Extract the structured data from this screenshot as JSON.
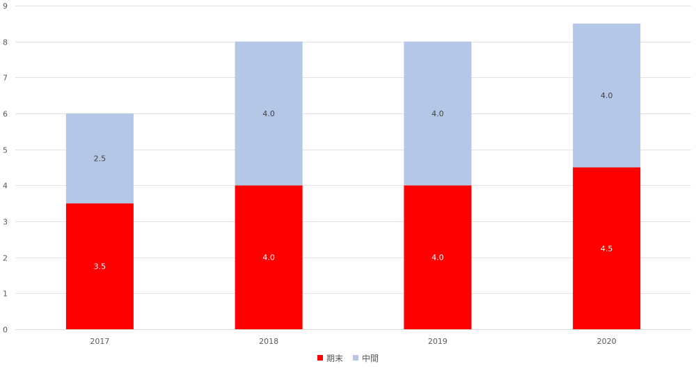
{
  "chart_data": {
    "type": "bar",
    "stacked": true,
    "categories": [
      "2017",
      "2018",
      "2019",
      "2020"
    ],
    "series": [
      {
        "name": "期末",
        "values": [
          3.5,
          4.0,
          4.0,
          4.5
        ],
        "labels": [
          "3.5",
          "4.0",
          "4.0",
          "4.5"
        ],
        "color": "#ff0000",
        "label_color": "#ffffff"
      },
      {
        "name": "中間",
        "values": [
          2.5,
          4.0,
          4.0,
          4.0
        ],
        "labels": [
          "2.5",
          "4.0",
          "4.0",
          "4.0"
        ],
        "color": "#b4c7e7",
        "label_color": "#404040"
      }
    ],
    "ylim": [
      0,
      9
    ],
    "yticks": [
      "0",
      "1",
      "2",
      "3",
      "4",
      "5",
      "6",
      "7",
      "8",
      "9"
    ],
    "grid": true,
    "legend_position": "bottom",
    "title": "",
    "xlabel": "",
    "ylabel": ""
  }
}
